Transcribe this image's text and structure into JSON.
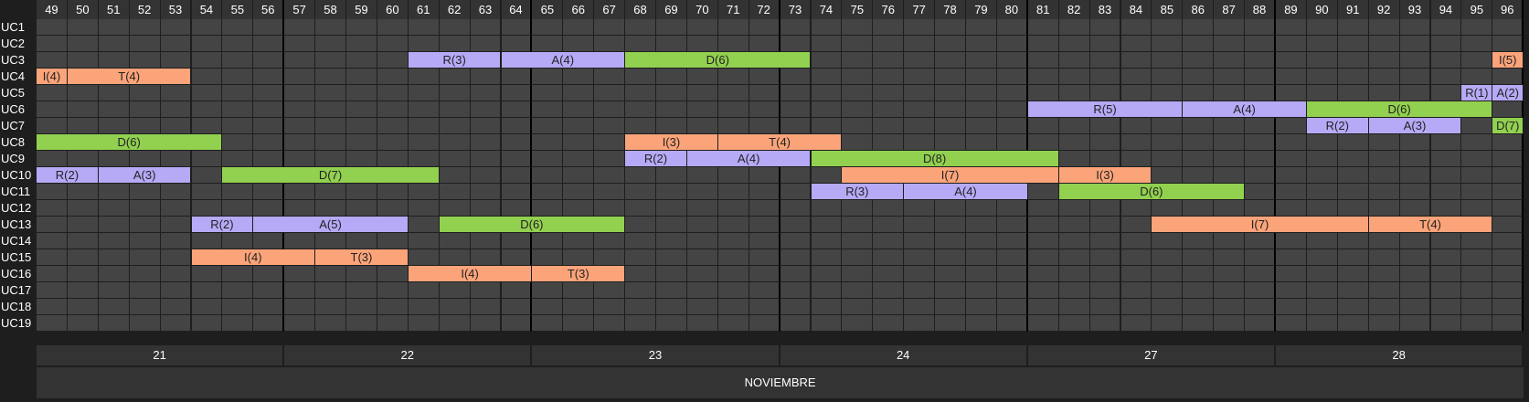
{
  "columns": [
    49,
    50,
    51,
    52,
    53,
    54,
    55,
    56,
    57,
    58,
    59,
    60,
    61,
    62,
    63,
    64,
    65,
    66,
    67,
    68,
    69,
    70,
    71,
    72,
    73,
    74,
    75,
    76,
    77,
    78,
    79,
    80,
    81,
    82,
    83,
    84,
    85,
    86,
    87,
    88,
    89,
    90,
    91,
    92,
    93,
    94,
    95,
    96
  ],
  "rows": [
    "UC1",
    "UC2",
    "UC3",
    "UC4",
    "UC5",
    "UC6",
    "UC7",
    "UC8",
    "UC9",
    "UC10",
    "UC11",
    "UC12",
    "UC13",
    "UC14",
    "UC15",
    "UC16",
    "UC17",
    "UC18",
    "UC19"
  ],
  "days": [
    {
      "label": "21",
      "start": 49,
      "end": 56
    },
    {
      "label": "22",
      "start": 57,
      "end": 64
    },
    {
      "label": "23",
      "start": 65,
      "end": 72
    },
    {
      "label": "24",
      "start": 73,
      "end": 80
    },
    {
      "label": "27",
      "start": 81,
      "end": 88
    },
    {
      "label": "28",
      "start": 89,
      "end": 96
    }
  ],
  "month": "NOVIEMBRE",
  "colors": {
    "R": "#b6aaf6",
    "A": "#b6aaf6",
    "D": "#92d050",
    "I": "#fba47a",
    "T": "#fba47a"
  },
  "bars": [
    {
      "row": "UC3",
      "label": "R(3)",
      "type": "R",
      "start": 61,
      "len": 3
    },
    {
      "row": "UC3",
      "label": "A(4)",
      "type": "A",
      "start": 64,
      "len": 4
    },
    {
      "row": "UC3",
      "label": "D(6)",
      "type": "D",
      "start": 68,
      "len": 6
    },
    {
      "row": "UC3",
      "label": "I(5)",
      "type": "I",
      "start": 96,
      "len": 1
    },
    {
      "row": "UC4",
      "label": "I(4)",
      "type": "I",
      "start": 49,
      "len": 1
    },
    {
      "row": "UC4",
      "label": "T(4)",
      "type": "T",
      "start": 50,
      "len": 4
    },
    {
      "row": "UC5",
      "label": "R(1)",
      "type": "R",
      "start": 95,
      "len": 1
    },
    {
      "row": "UC5",
      "label": "A(2)",
      "type": "A",
      "start": 96,
      "len": 1
    },
    {
      "row": "UC6",
      "label": "R(5)",
      "type": "R",
      "start": 81,
      "len": 5
    },
    {
      "row": "UC6",
      "label": "A(4)",
      "type": "A",
      "start": 86,
      "len": 4
    },
    {
      "row": "UC6",
      "label": "D(6)",
      "type": "D",
      "start": 90,
      "len": 6
    },
    {
      "row": "UC7",
      "label": "R(2)",
      "type": "R",
      "start": 90,
      "len": 2
    },
    {
      "row": "UC7",
      "label": "A(3)",
      "type": "A",
      "start": 92,
      "len": 3
    },
    {
      "row": "UC7",
      "label": "D(7)",
      "type": "D",
      "start": 96,
      "len": 1
    },
    {
      "row": "UC8",
      "label": "D(6)",
      "type": "D",
      "start": 49,
      "len": 6
    },
    {
      "row": "UC8",
      "label": "I(3)",
      "type": "I",
      "start": 68,
      "len": 3
    },
    {
      "row": "UC8",
      "label": "T(4)",
      "type": "T",
      "start": 71,
      "len": 4
    },
    {
      "row": "UC9",
      "label": "R(2)",
      "type": "R",
      "start": 68,
      "len": 2
    },
    {
      "row": "UC9",
      "label": "A(4)",
      "type": "A",
      "start": 70,
      "len": 4
    },
    {
      "row": "UC9",
      "label": "D(8)",
      "type": "D",
      "start": 74,
      "len": 8
    },
    {
      "row": "UC10",
      "label": "R(2)",
      "type": "R",
      "start": 49,
      "len": 2
    },
    {
      "row": "UC10",
      "label": "A(3)",
      "type": "A",
      "start": 51,
      "len": 3
    },
    {
      "row": "UC10",
      "label": "D(7)",
      "type": "D",
      "start": 55,
      "len": 7
    },
    {
      "row": "UC10",
      "label": "I(7)",
      "type": "I",
      "start": 75,
      "len": 7
    },
    {
      "row": "UC10",
      "label": "I(3)",
      "type": "I",
      "start": 82,
      "len": 3
    },
    {
      "row": "UC11",
      "label": "R(3)",
      "type": "R",
      "start": 74,
      "len": 3
    },
    {
      "row": "UC11",
      "label": "A(4)",
      "type": "A",
      "start": 77,
      "len": 4
    },
    {
      "row": "UC11",
      "label": "D(6)",
      "type": "D",
      "start": 82,
      "len": 6
    },
    {
      "row": "UC13",
      "label": "R(2)",
      "type": "R",
      "start": 54,
      "len": 2
    },
    {
      "row": "UC13",
      "label": "A(5)",
      "type": "A",
      "start": 56,
      "len": 5
    },
    {
      "row": "UC13",
      "label": "D(6)",
      "type": "D",
      "start": 62,
      "len": 6
    },
    {
      "row": "UC13",
      "label": "I(7)",
      "type": "I",
      "start": 85,
      "len": 7
    },
    {
      "row": "UC13",
      "label": "T(4)",
      "type": "T",
      "start": 92,
      "len": 4
    },
    {
      "row": "UC15",
      "label": "I(4)",
      "type": "I",
      "start": 54,
      "len": 4
    },
    {
      "row": "UC15",
      "label": "T(3)",
      "type": "T",
      "start": 58,
      "len": 3
    },
    {
      "row": "UC16",
      "label": "I(4)",
      "type": "I",
      "start": 61,
      "len": 4
    },
    {
      "row": "UC16",
      "label": "T(3)",
      "type": "T",
      "start": 65,
      "len": 3
    }
  ]
}
